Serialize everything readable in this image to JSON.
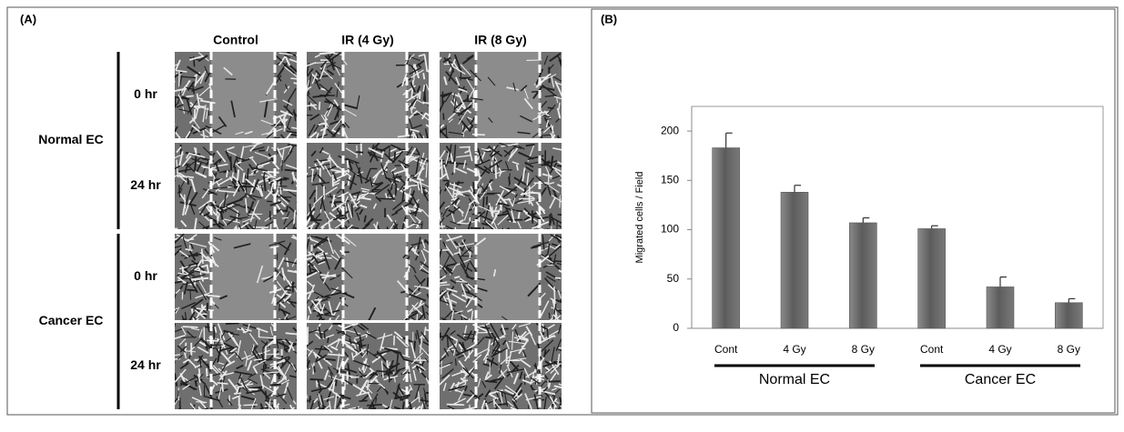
{
  "panel_a": {
    "label": "(A)",
    "columns": [
      "Control",
      "IR (4 Gy)",
      "IR (8 Gy)"
    ],
    "rows": [
      {
        "name": "Normal EC",
        "times": [
          "0 hr",
          "24 hr"
        ]
      },
      {
        "name": "Cancer EC",
        "times": [
          "0 hr",
          "24 hr"
        ]
      }
    ]
  },
  "panel_b": {
    "label": "(B)"
  },
  "chart_data": {
    "type": "bar",
    "y_label": "Migrated cells / Field",
    "categories": [
      "Cont",
      "4 Gy",
      "8 Gy",
      "Cont",
      "4 Gy",
      "8 Gy"
    ],
    "groups": [
      "Normal EC",
      "Cancer EC"
    ],
    "series": [
      {
        "color": "#6e6e6e",
        "values": [
          183,
          138,
          107,
          101,
          42,
          26
        ],
        "errors": [
          15,
          7,
          5,
          3,
          10,
          4
        ]
      }
    ],
    "ylim": [
      0,
      225
    ],
    "yticks": [
      0,
      50,
      100,
      150,
      200
    ]
  }
}
